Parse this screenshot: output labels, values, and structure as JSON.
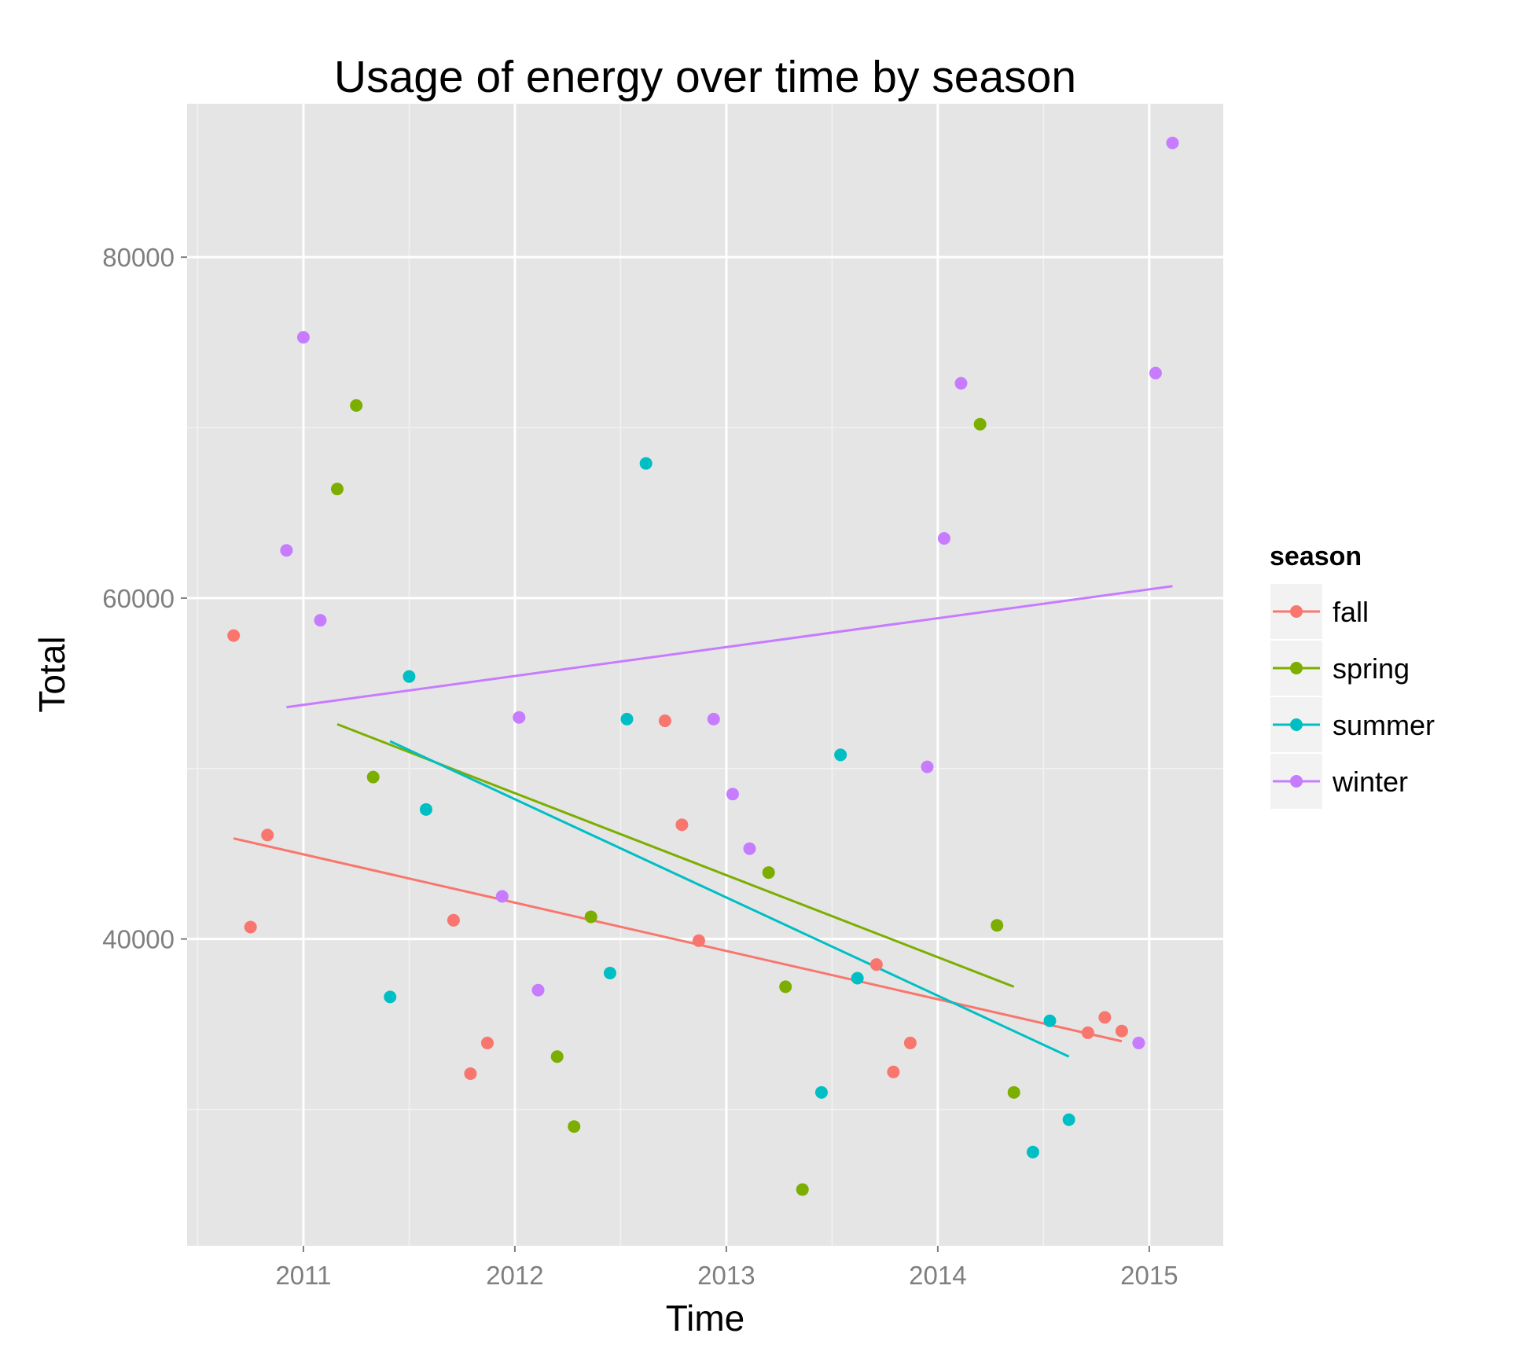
{
  "chart_data": {
    "type": "scatter",
    "title": "Usage of energy over time by season",
    "xlabel": "Time",
    "ylabel": "Total",
    "xlim": [
      2010.45,
      2015.35
    ],
    "ylim": [
      22000,
      89000
    ],
    "x_ticks": [
      2011,
      2012,
      2013,
      2014,
      2015
    ],
    "x_tick_labels": [
      "2011",
      "2012",
      "2013",
      "2014",
      "2015"
    ],
    "y_ticks": [
      40000,
      60000,
      80000
    ],
    "y_tick_labels": [
      "40000",
      "60000",
      "80000"
    ],
    "grid": true,
    "legend": {
      "title": "season",
      "position": "right"
    },
    "series": [
      {
        "name": "fall",
        "color": "#F8766D",
        "points": [
          [
            2010.67,
            57800
          ],
          [
            2010.75,
            40700
          ],
          [
            2010.83,
            46100
          ],
          [
            2011.71,
            41100
          ],
          [
            2011.79,
            32100
          ],
          [
            2011.87,
            33900
          ],
          [
            2012.71,
            52800
          ],
          [
            2012.79,
            46700
          ],
          [
            2012.87,
            39900
          ],
          [
            2013.71,
            38500
          ],
          [
            2013.79,
            32200
          ],
          [
            2013.87,
            33900
          ],
          [
            2014.71,
            34500
          ],
          [
            2014.79,
            35400
          ],
          [
            2014.87,
            34600
          ]
        ],
        "trend": [
          [
            2010.67,
            45900
          ],
          [
            2014.87,
            34000
          ]
        ]
      },
      {
        "name": "spring",
        "color": "#7CAE00",
        "points": [
          [
            2011.16,
            66400
          ],
          [
            2011.25,
            71300
          ],
          [
            2011.33,
            49500
          ],
          [
            2012.2,
            33100
          ],
          [
            2012.28,
            29000
          ],
          [
            2012.36,
            41300
          ],
          [
            2013.2,
            43900
          ],
          [
            2013.28,
            37200
          ],
          [
            2013.36,
            25300
          ],
          [
            2014.2,
            70200
          ],
          [
            2014.28,
            40800
          ],
          [
            2014.36,
            31000
          ]
        ],
        "trend": [
          [
            2011.16,
            52600
          ],
          [
            2014.36,
            37200
          ]
        ]
      },
      {
        "name": "summer",
        "color": "#00BFC4",
        "points": [
          [
            2011.41,
            36600
          ],
          [
            2011.5,
            55400
          ],
          [
            2011.58,
            47600
          ],
          [
            2012.45,
            38000
          ],
          [
            2012.53,
            52900
          ],
          [
            2012.62,
            67900
          ],
          [
            2013.45,
            31000
          ],
          [
            2013.54,
            50800
          ],
          [
            2013.62,
            37700
          ],
          [
            2014.45,
            27500
          ],
          [
            2014.53,
            35200
          ],
          [
            2014.62,
            29400
          ]
        ],
        "trend": [
          [
            2011.41,
            51600
          ],
          [
            2014.62,
            33100
          ]
        ]
      },
      {
        "name": "winter",
        "color": "#C77CFF",
        "points": [
          [
            2010.92,
            62800
          ],
          [
            2011.0,
            75300
          ],
          [
            2011.08,
            58700
          ],
          [
            2011.94,
            42500
          ],
          [
            2012.02,
            53000
          ],
          [
            2012.11,
            37000
          ],
          [
            2012.94,
            52900
          ],
          [
            2013.03,
            48500
          ],
          [
            2013.11,
            45300
          ],
          [
            2013.95,
            50100
          ],
          [
            2014.03,
            63500
          ],
          [
            2014.11,
            72600
          ],
          [
            2014.95,
            33900
          ],
          [
            2015.03,
            73200
          ],
          [
            2015.11,
            86700
          ]
        ],
        "trend": [
          [
            2010.92,
            53600
          ],
          [
            2015.11,
            60700
          ]
        ]
      }
    ]
  }
}
